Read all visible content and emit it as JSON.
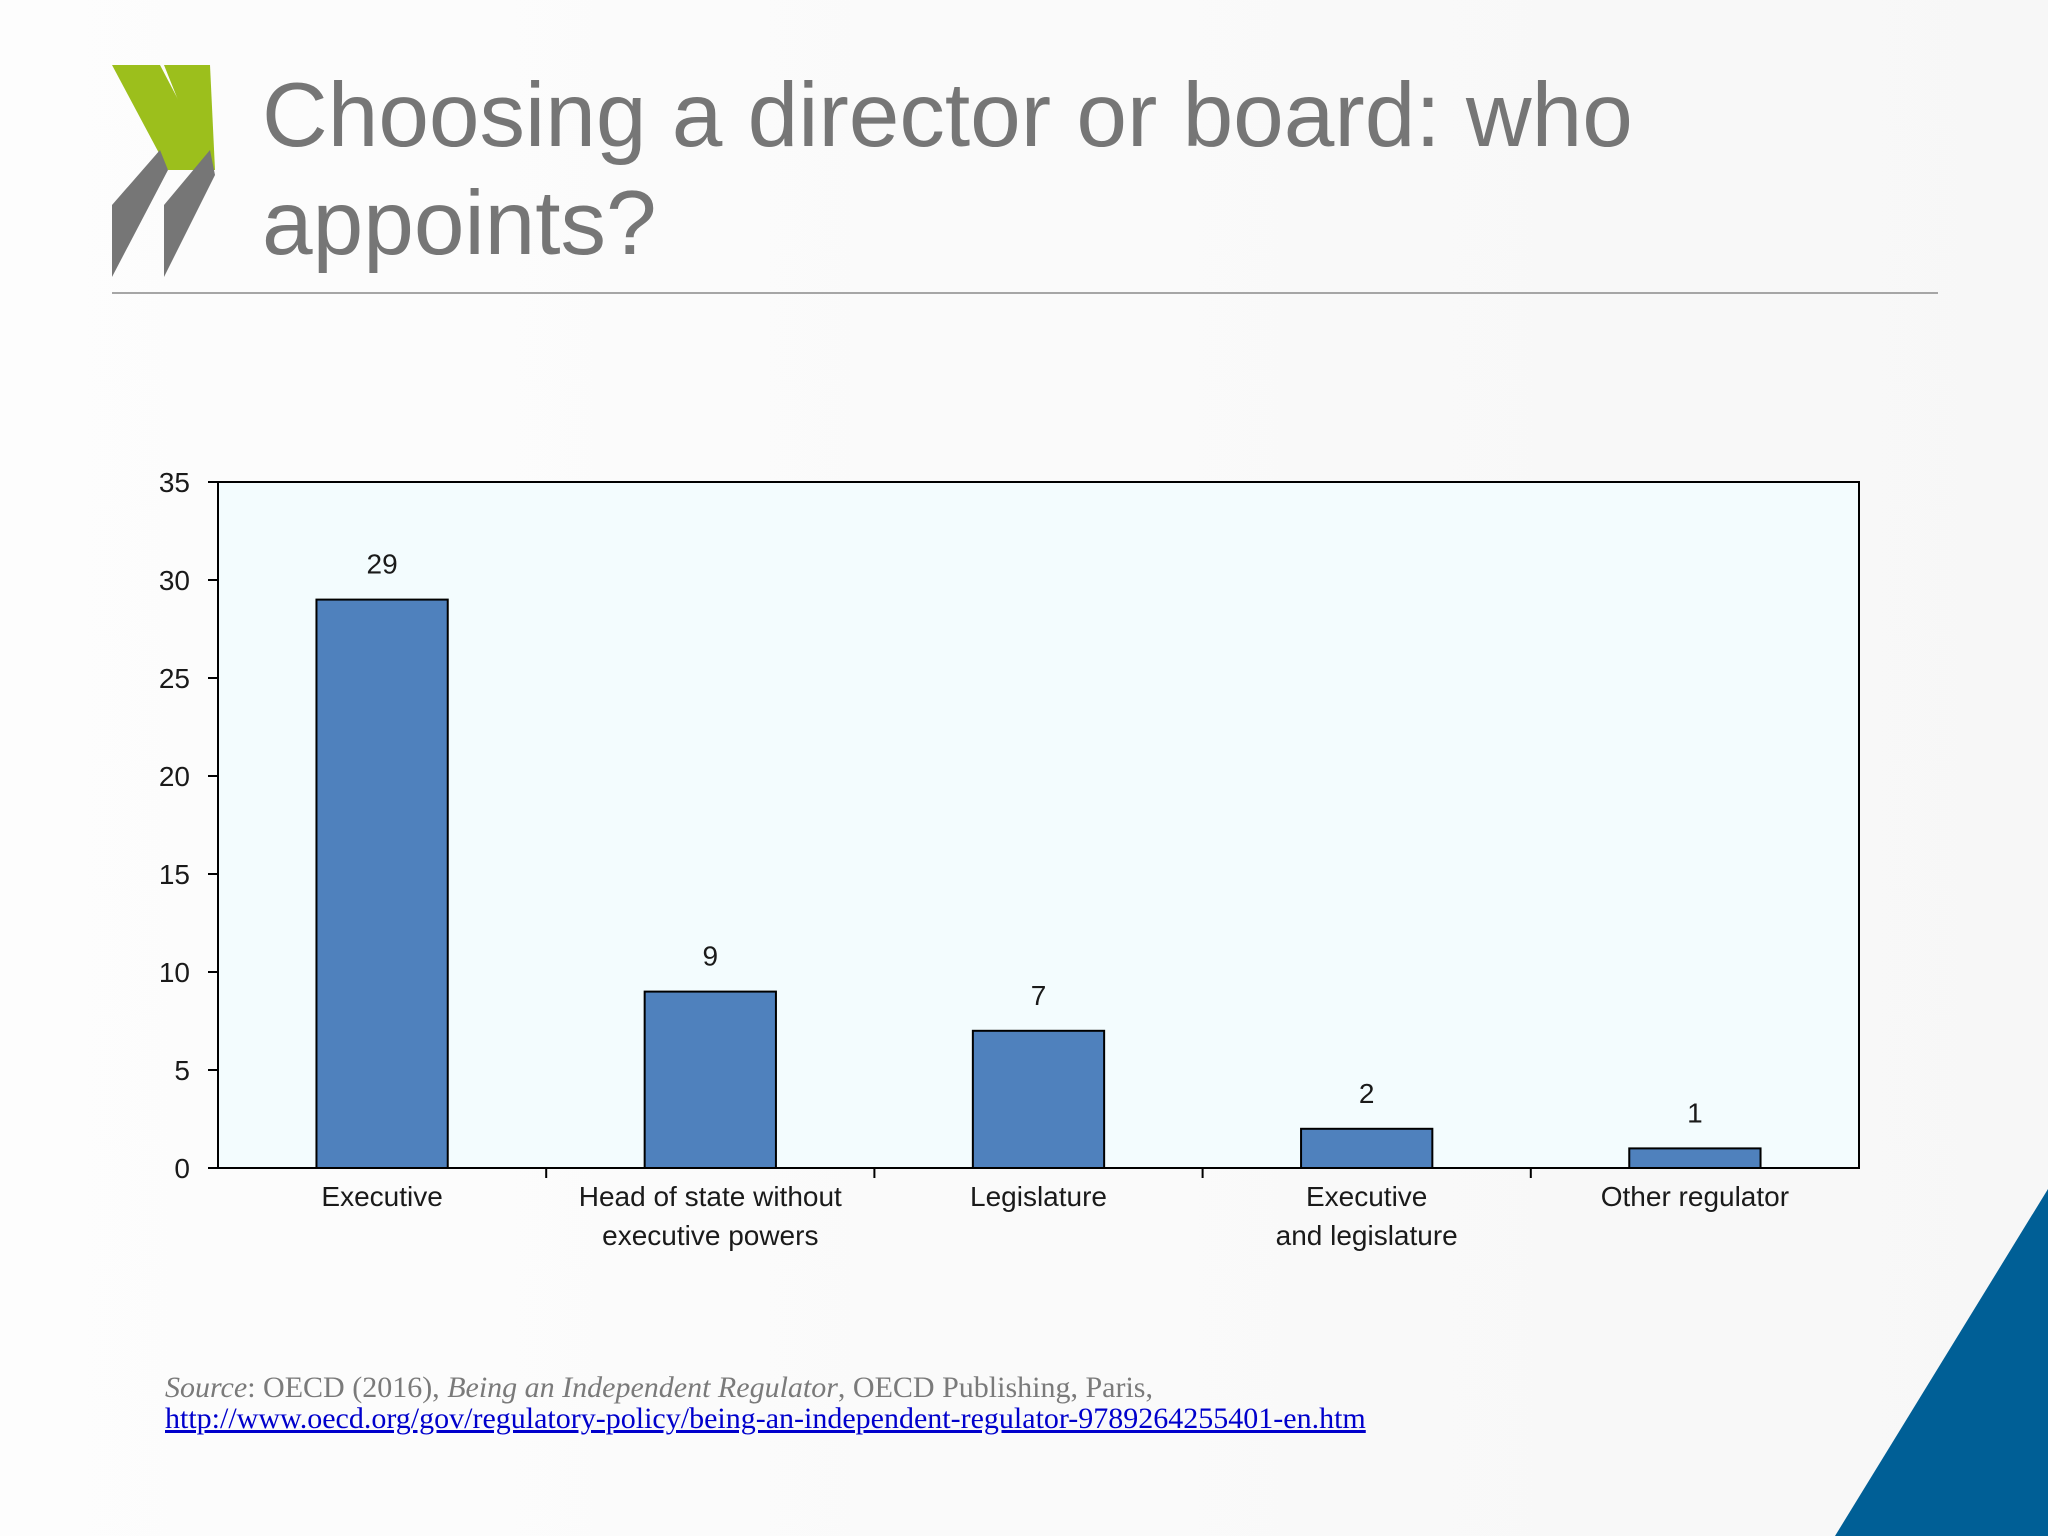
{
  "header": {
    "title": "Choosing a director or board: who appoints?"
  },
  "chart_data": {
    "type": "bar",
    "categories": [
      "Executive",
      "Head of state without\nexecutive powers",
      "Legislature",
      "Executive\nand legislature",
      "Other regulator"
    ],
    "values": [
      29,
      9,
      7,
      2,
      1
    ],
    "color": "#4f81bd",
    "ylim": [
      0,
      35
    ],
    "yticks": [
      0,
      5,
      10,
      15,
      20,
      25,
      30,
      35
    ],
    "grid": false
  },
  "footer": {
    "source_label": "Source",
    "source_prefix": ": OECD (2016), ",
    "book_title": "Being an Independent Regulator",
    "source_suffix": ", OECD Publishing, Paris,",
    "url": "http://www.oecd.org/gov/regulatory-policy/being-an-independent-regulator-9789264255401-en.htm"
  }
}
